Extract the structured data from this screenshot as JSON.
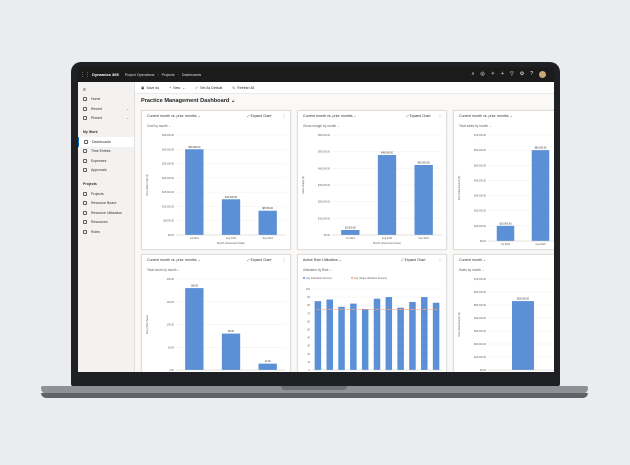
{
  "topbar": {
    "app": "Dynamics 365",
    "area": "Project Operations",
    "crumb_root": "Projects",
    "crumb_page": "Dashboards"
  },
  "nav": {
    "items": [
      {
        "label": "Home"
      },
      {
        "label": "Recent"
      },
      {
        "label": "Pinned"
      }
    ],
    "group_my_work": "My Work",
    "my_work": [
      {
        "label": "Dashboards",
        "active": true
      },
      {
        "label": "Time Entries"
      },
      {
        "label": "Expenses"
      },
      {
        "label": "Approvals"
      }
    ],
    "group_projects": "Projects",
    "projects": [
      {
        "label": "Projects"
      },
      {
        "label": "Resource Board"
      },
      {
        "label": "Resource Utilization"
      },
      {
        "label": "Resources"
      },
      {
        "label": "Roles"
      }
    ]
  },
  "cmdbar": {
    "save_as": "Save As",
    "new": "New",
    "set_default": "Set As Default",
    "refresh": "Refresh All"
  },
  "dashboard": {
    "title": "Practice Management Dashboard"
  },
  "expand_label": "Expand Chart",
  "colors": {
    "bar": "#5b8fd6",
    "line": "#f0a27a",
    "accent": "#0f6cbd"
  },
  "chart_data": [
    {
      "type": "bar",
      "title": "Current month vs. prior months",
      "subtitle": "Cost by month",
      "categories": [
        "Jul 2023",
        "Aug 2023",
        "Sep 2023"
      ],
      "values": [
        30000,
        12500,
        8500
      ],
      "value_labels": [
        "$30,000.00",
        "$12,500.00",
        "$8,500.00"
      ],
      "ylim": [
        0,
        35000
      ],
      "yticks": [
        "$0.00",
        "$5,000.00",
        "$10,000.00",
        "$15,000.00",
        "$20,000.00",
        "$25,000.00",
        "$30,000.00",
        "$35,000.00"
      ],
      "xlabel": "Month (Document Date)",
      "ylabel": "Sum (Total Cost) ($)"
    },
    {
      "type": "bar",
      "title": "Current month vs. prior months",
      "subtitle": "Gross margin by month",
      "categories": [
        "Jul 2023",
        "Aug 2023",
        "Sep 2023"
      ],
      "values": [
        3000,
        48000,
        42000
      ],
      "value_labels": [
        "$3,000.00",
        "$48,000.00",
        "$42,000.00"
      ],
      "ylim": [
        0,
        60000
      ],
      "yticks": [
        "$0.00",
        "$10,000.00",
        "$20,000.00",
        "$30,000.00",
        "$40,000.00",
        "$50,000.00",
        "$60,000.00"
      ],
      "xlabel": "Month (Document Date)",
      "ylabel": "Gross Margin ($)"
    },
    {
      "type": "bar",
      "title": "Current month vs. prior months",
      "subtitle": "Total sales by month",
      "categories": [
        "Jul 2023",
        "Aug 2023"
      ],
      "values": [
        10000,
        60000
      ],
      "value_labels": [
        "$10,000.00",
        "$60,000.00"
      ],
      "ylim": [
        0,
        70000
      ],
      "yticks": [
        "$0.00",
        "$10,000.00",
        "$20,000.00",
        "$30,000.00",
        "$40,000.00",
        "$50,000.00",
        "$60,000.00",
        "$70,000.00"
      ],
      "xlabel": "",
      "ylabel": "Sum (Total Amount) ($)"
    },
    {
      "type": "bar",
      "title": "Current month vs. prior months",
      "subtitle": "Total hours by month",
      "categories": [
        "",
        "",
        ""
      ],
      "values": [
        180,
        80,
        14
      ],
      "value_labels": [
        "180.00",
        "80.00",
        "14.00"
      ],
      "ylim": [
        0,
        200
      ],
      "yticks": [
        "0.00",
        "50.00",
        "100.00",
        "150.00",
        "200.00"
      ],
      "xlabel": "",
      "ylabel": "Sum (Total Hours)"
    },
    {
      "type": "bar",
      "title": "Active Role Utilization",
      "subtitle": "Utilization by Role",
      "legend": [
        "Avg (Utilization Percent)",
        "Avg (Target Utilization Percent)"
      ],
      "values": [
        85,
        87,
        78,
        82,
        75,
        88,
        90,
        77,
        84,
        90,
        83
      ],
      "target": [
        75,
        75,
        75,
        75,
        75,
        75,
        75,
        75,
        75,
        75,
        75
      ],
      "ylim": [
        0,
        100
      ],
      "yticks": [
        "0",
        "10",
        "20",
        "30",
        "40",
        "50",
        "60",
        "70",
        "80",
        "90",
        "100"
      ],
      "xlabel": "",
      "ylabel": ""
    },
    {
      "type": "bar",
      "title": "Current month",
      "subtitle": "Sales by month",
      "categories": [
        ""
      ],
      "values": [
        53000
      ],
      "value_labels": [
        "$53,000.00"
      ],
      "ylim": [
        0,
        70000
      ],
      "yticks": [
        "$0.00",
        "$10,000.00",
        "$20,000.00",
        "$30,000.00",
        "$40,000.00",
        "$50,000.00",
        "$60,000.00",
        "$70,000.00"
      ],
      "xlabel": "",
      "ylabel": "Sum (Total Amount) ($)"
    }
  ]
}
